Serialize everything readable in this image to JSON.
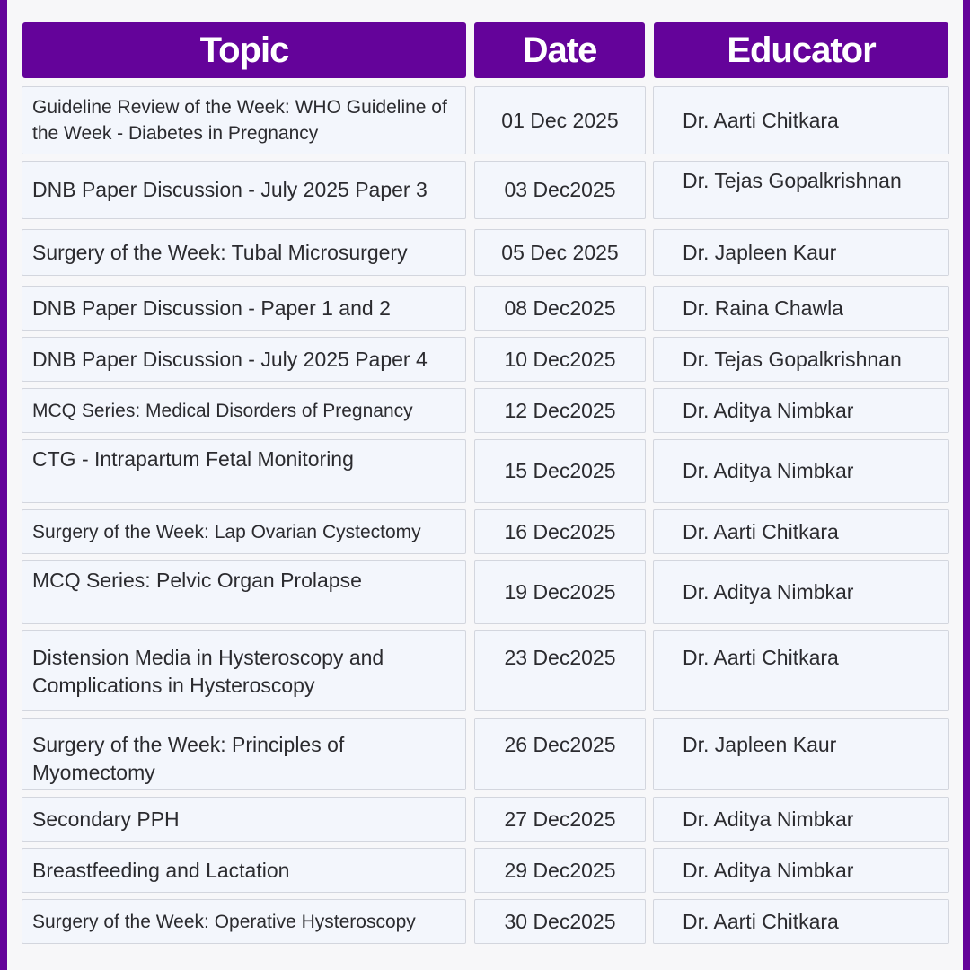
{
  "header": {
    "topic": "Topic",
    "date": "Date",
    "educator": "Educator"
  },
  "rows": [
    {
      "topic": "Guideline Review of the Week: WHO Guideline of the Week - Diabetes in Pregnancy",
      "date": "01 Dec 2025",
      "educator": "Dr. Aarti Chitkara"
    },
    {
      "topic": "DNB Paper Discussion - July 2025 Paper 3",
      "date": "03 Dec2025",
      "educator": "Dr. Tejas Gopalkrishnan"
    },
    {
      "topic": "Surgery of the Week: Tubal Microsurgery",
      "date": "05 Dec 2025",
      "educator": "Dr. Japleen Kaur"
    },
    {
      "topic": "DNB Paper Discussion - Paper 1 and 2",
      "date": "08 Dec2025",
      "educator": "Dr. Raina Chawla"
    },
    {
      "topic": "DNB Paper Discussion - July 2025 Paper 4",
      "date": "10 Dec2025",
      "educator": "Dr. Tejas Gopalkrishnan"
    },
    {
      "topic": "MCQ Series: Medical Disorders of Pregnancy",
      "date": "12 Dec2025",
      "educator": "Dr. Aditya Nimbkar"
    },
    {
      "topic": "CTG - Intrapartum Fetal Monitoring",
      "date": "15 Dec2025",
      "educator": "Dr. Aditya Nimbkar"
    },
    {
      "topic": "Surgery of the Week: Lap Ovarian Cystectomy",
      "date": "16 Dec2025",
      "educator": "Dr. Aarti Chitkara"
    },
    {
      "topic": "MCQ Series: Pelvic Organ Prolapse",
      "date": "19 Dec2025",
      "educator": "Dr. Aditya Nimbkar"
    },
    {
      "topic": "Distension Media in Hysteroscopy and Complications in Hysteroscopy",
      "date": "23 Dec2025",
      "educator": "Dr. Aarti Chitkara"
    },
    {
      "topic": "Surgery of the Week: Principles of Myomectomy",
      "date": "26 Dec2025",
      "educator": "Dr. Japleen Kaur"
    },
    {
      "topic": "Secondary PPH",
      "date": "27 Dec2025",
      "educator": "Dr. Aditya Nimbkar"
    },
    {
      "topic": "Breastfeeding and Lactation",
      "date": "29 Dec2025",
      "educator": "Dr. Aditya Nimbkar"
    },
    {
      "topic": "Surgery of the Week: Operative Hysteroscopy",
      "date": "30 Dec2025",
      "educator": "Dr. Aarti Chitkara"
    }
  ]
}
